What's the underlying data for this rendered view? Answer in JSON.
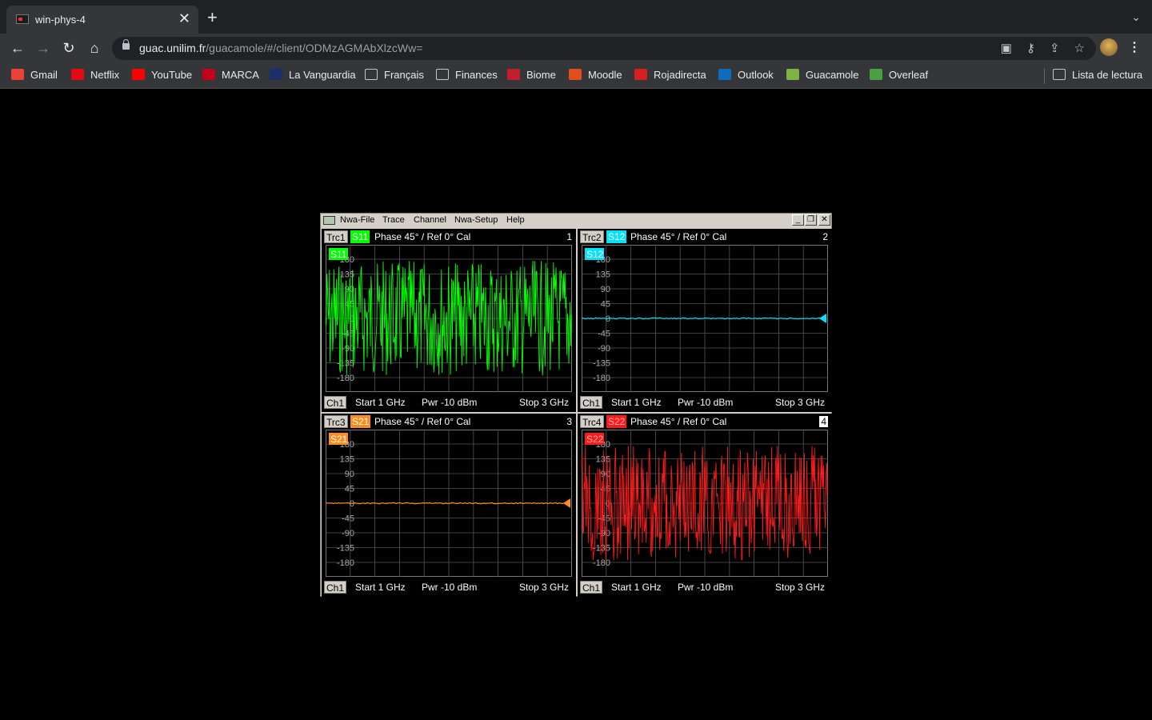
{
  "browser": {
    "tab_title": "win-phys-4",
    "tab_close": "✕",
    "new_tab": "+",
    "tab_search": "⌄",
    "url_host": "guac.unilim.fr",
    "url_path": "/guacamole/#/client/ODMzAGMAbXlzcWw=",
    "bookmarks": [
      {
        "label": "Gmail",
        "color": "#ea4335"
      },
      {
        "label": "Netflix",
        "color": "#e50914"
      },
      {
        "label": "YouTube",
        "color": "#ff0000"
      },
      {
        "label": "MARCA",
        "color": "#c4001a"
      },
      {
        "label": "La Vanguardia",
        "color": "#1b2f6b"
      },
      {
        "label": "Français",
        "color": "folder"
      },
      {
        "label": "Finances",
        "color": "folder"
      },
      {
        "label": "Biome",
        "color": "#c0202a"
      },
      {
        "label": "Moodle",
        "color": "#e24d1c"
      },
      {
        "label": "Rojadirecta",
        "color": "#d42020"
      },
      {
        "label": "Outlook",
        "color": "#0f6cbd"
      },
      {
        "label": "Guacamole",
        "color": "#7cb342"
      },
      {
        "label": "Overleaf",
        "color": "#47a141"
      }
    ],
    "reading_list": "Lista de lectura"
  },
  "app": {
    "menu": [
      "Nwa-File",
      "Trace",
      "Channel",
      "Nwa-Setup",
      "Help"
    ],
    "window_buttons": [
      "_",
      "❐",
      "✕"
    ],
    "panes": [
      {
        "trace": "Trc1",
        "param": "S11",
        "color": "#00ff00",
        "header": "Phase  45° / Ref 0°    Cal",
        "number": "1",
        "channel": "Ch1",
        "start": "Start  1 GHz",
        "power": "Pwr  -10 dBm",
        "stop": "Stop  3 GHz",
        "signal": "noise"
      },
      {
        "trace": "Trc2",
        "param": "S12",
        "color": "#00e5ff",
        "header": "Phase  45° / Ref 0°    Cal",
        "number": "2",
        "channel": "Ch1",
        "start": "Start  1 GHz",
        "power": "Pwr  -10 dBm",
        "stop": "Stop  3 GHz",
        "signal": "flat"
      },
      {
        "trace": "Trc3",
        "param": "S21",
        "color": "#ff8c1a",
        "header": "Phase  45° / Ref 0°    Cal",
        "number": "3",
        "channel": "Ch1",
        "start": "Start  1 GHz",
        "power": "Pwr  -10 dBm",
        "stop": "Stop  3 GHz",
        "signal": "flat"
      },
      {
        "trace": "Trc4",
        "param": "S22",
        "color": "#ff1a1a",
        "header": "Phase  45° / Ref 0°    Cal",
        "number": "4",
        "channel": "Ch1",
        "start": "Start  1 GHz",
        "power": "Pwr  -10 dBm",
        "stop": "Stop  3 GHz",
        "signal": "noise"
      }
    ],
    "y_ticks": [
      "180",
      "135",
      "90",
      "45",
      "0",
      "-45",
      "-90",
      "-135",
      "-180"
    ]
  }
}
